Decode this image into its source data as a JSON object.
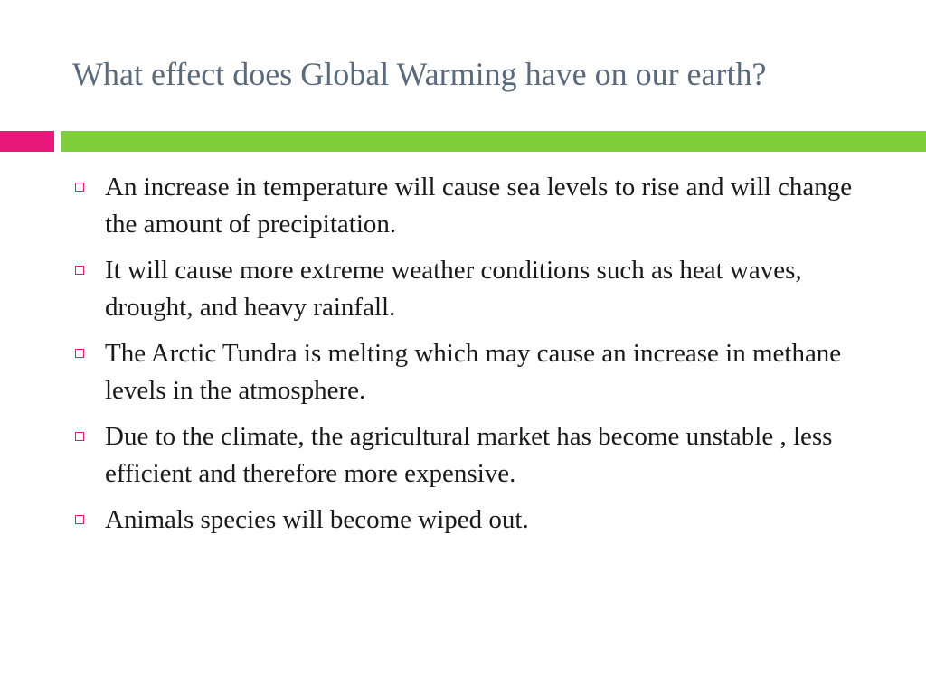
{
  "slide": {
    "title": "What effect does Global Warming have on our earth?",
    "bullets": [
      "An increase in temperature will cause sea levels to rise and will change the amount of precipitation.",
      "It will cause more extreme weather conditions such as heat waves, drought, and heavy rainfall.",
      "The Arctic Tundra is melting which may cause an increase in methane levels in the atmosphere.",
      "Due to the climate, the agricultural market has become unstable , less efficient and therefore more expensive.",
      "Animals species will become wiped out."
    ]
  },
  "colors": {
    "title_text": "#5a6a7e",
    "accent_pink": "#e8177a",
    "accent_green": "#7fcf3a",
    "body_text": "#1a1a1a",
    "background": "#ffffff"
  },
  "icons": {
    "bullet_marker": "hollow-square-icon"
  }
}
